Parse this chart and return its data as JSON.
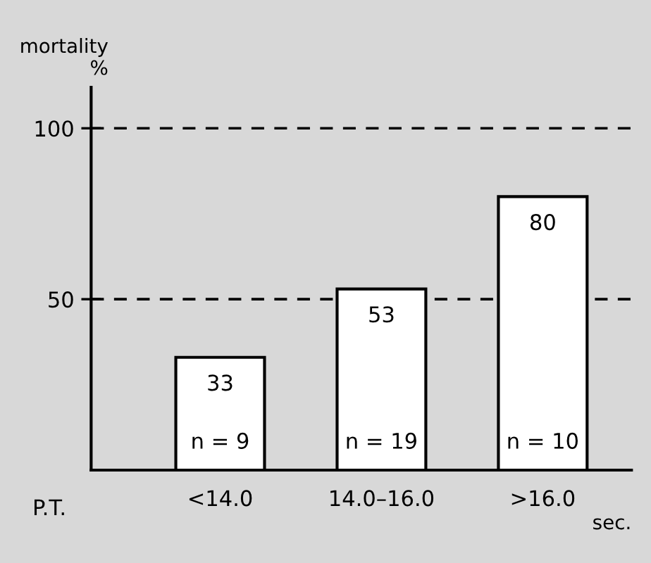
{
  "chart_data": {
    "type": "bar",
    "ylabel": "mortality\n%",
    "xlabel": "sec.",
    "categories": [
      "<14.0",
      "14.0–16.0",
      ">16.0"
    ],
    "values": [
      33,
      53,
      80
    ],
    "color": "#ffffff",
    "data_labels": true,
    "ylim": [
      0,
      112
    ],
    "yticks": [
      50,
      100
    ],
    "grid": false,
    "ref_lines": [
      {
        "axis": "y",
        "value": 50,
        "line_style": "dashed",
        "color": "#000000"
      },
      {
        "axis": "y",
        "value": 100,
        "line_style": "dashed",
        "color": "#000000"
      }
    ],
    "annotations": [
      "P.T.",
      "n = 9",
      "n = 19",
      "n = 10"
    ]
  }
}
